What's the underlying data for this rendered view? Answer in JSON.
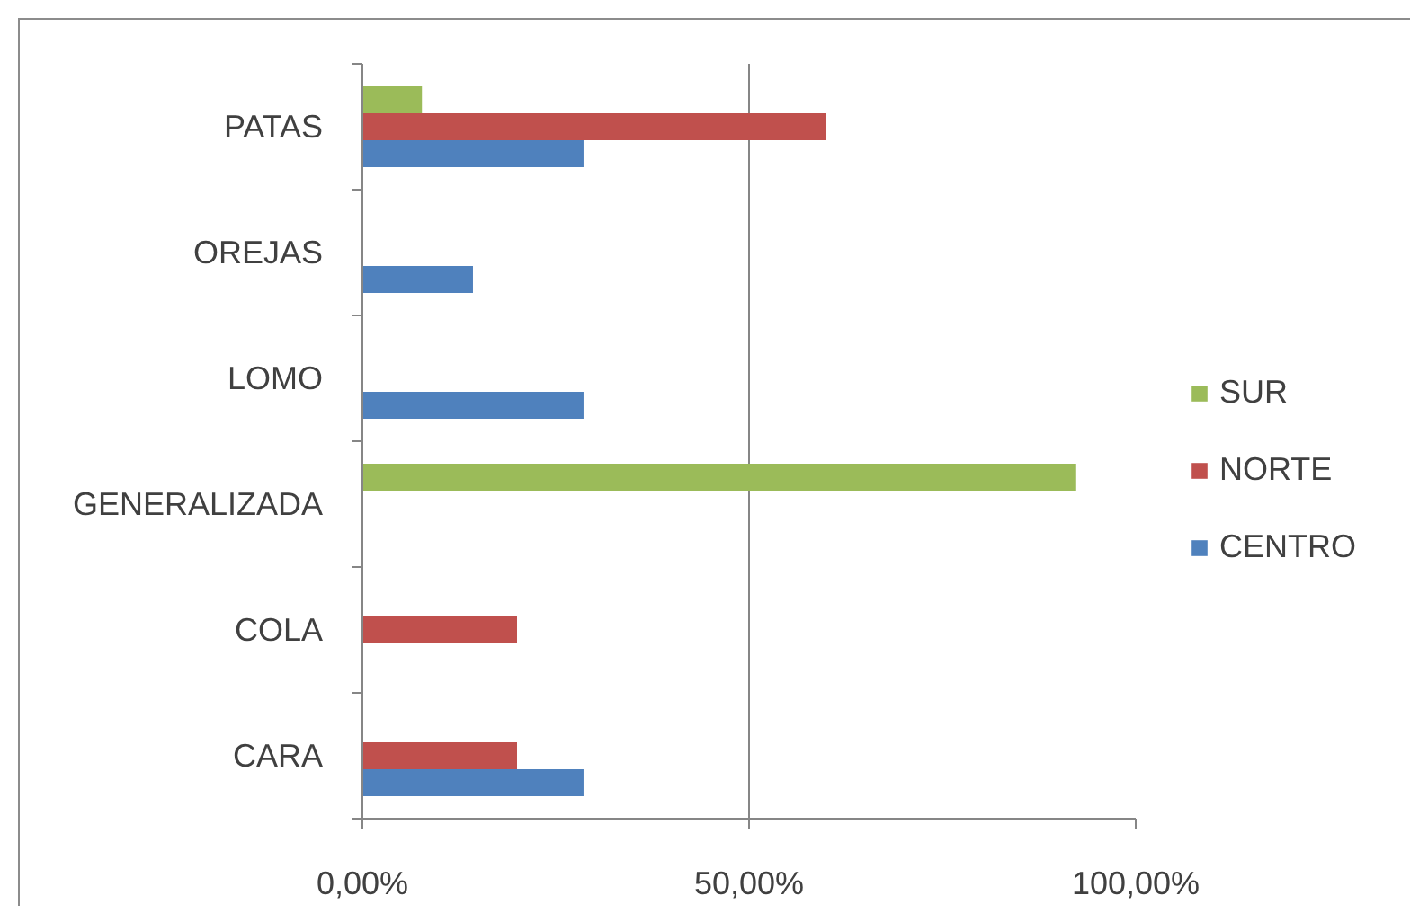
{
  "chart_data": {
    "type": "bar",
    "orientation": "horizontal",
    "categories": [
      "PATAS",
      "OREJAS",
      "LOMO",
      "GENERALIZADA",
      "COLA",
      "CARA"
    ],
    "series": [
      {
        "name": "CENTRO",
        "color": "#4f81bd",
        "values": [
          28.6,
          14.3,
          28.6,
          null,
          null,
          28.6
        ]
      },
      {
        "name": "NORTE",
        "color": "#c0504d",
        "values": [
          60,
          null,
          null,
          null,
          20,
          20
        ]
      },
      {
        "name": "SUR",
        "color": "#9bbb59",
        "values": [
          7.7,
          null,
          null,
          92.3,
          null,
          null
        ]
      }
    ],
    "xlim": [
      0,
      100
    ],
    "xticks": [
      {
        "value": 0,
        "label": "0,00%"
      },
      {
        "value": 50,
        "label": "50,00%"
      },
      {
        "value": 100,
        "label": "100,00%"
      }
    ],
    "grid": "x",
    "legend": "right"
  }
}
